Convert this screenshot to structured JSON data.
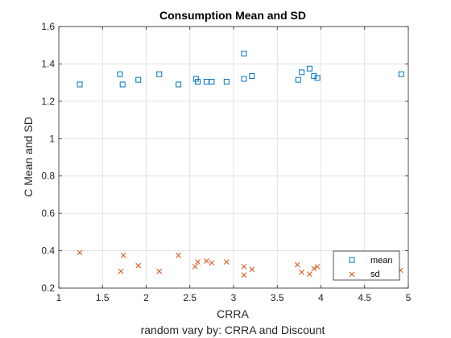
{
  "chart_data": {
    "type": "scatter",
    "title": "Consumption Mean and SD",
    "xlabel": "CRRA",
    "ylabel": "C Mean and SD",
    "subtitle": "random vary by: CRRA and Discount",
    "xlim": [
      1,
      5
    ],
    "ylim": [
      0.2,
      1.6
    ],
    "xticks": [
      "1",
      "1.5",
      "2",
      "2.5",
      "3",
      "3.5",
      "4",
      "4.5",
      "5"
    ],
    "yticks": [
      "0.2",
      "0.4",
      "0.6",
      "0.8",
      "1",
      "1.2",
      "1.4",
      "1.6"
    ],
    "grid": true,
    "legend_position": "bottom-right",
    "series": [
      {
        "name": "mean",
        "marker": "square",
        "color": "#0072BD",
        "points": [
          [
            1.24,
            1.29
          ],
          [
            1.7,
            1.345
          ],
          [
            1.73,
            1.29
          ],
          [
            1.91,
            1.315
          ],
          [
            2.15,
            1.345
          ],
          [
            2.37,
            1.29
          ],
          [
            2.57,
            1.32
          ],
          [
            2.59,
            1.305
          ],
          [
            2.69,
            1.305
          ],
          [
            2.75,
            1.305
          ],
          [
            2.92,
            1.305
          ],
          [
            3.12,
            1.455
          ],
          [
            3.12,
            1.32
          ],
          [
            3.21,
            1.335
          ],
          [
            3.74,
            1.315
          ],
          [
            3.78,
            1.355
          ],
          [
            3.87,
            1.375
          ],
          [
            3.92,
            1.335
          ],
          [
            3.96,
            1.325
          ],
          [
            4.92,
            1.345
          ]
        ]
      },
      {
        "name": "sd",
        "marker": "x",
        "color": "#D95319",
        "points": [
          [
            1.24,
            0.39
          ],
          [
            1.71,
            0.29
          ],
          [
            1.74,
            0.375
          ],
          [
            1.91,
            0.32
          ],
          [
            2.15,
            0.29
          ],
          [
            2.37,
            0.375
          ],
          [
            2.56,
            0.315
          ],
          [
            2.59,
            0.34
          ],
          [
            2.69,
            0.345
          ],
          [
            2.75,
            0.335
          ],
          [
            2.92,
            0.34
          ],
          [
            3.12,
            0.315
          ],
          [
            3.12,
            0.27
          ],
          [
            3.21,
            0.3
          ],
          [
            3.73,
            0.325
          ],
          [
            3.78,
            0.285
          ],
          [
            3.87,
            0.275
          ],
          [
            3.92,
            0.305
          ],
          [
            3.96,
            0.315
          ],
          [
            4.91,
            0.295
          ]
        ]
      }
    ]
  }
}
